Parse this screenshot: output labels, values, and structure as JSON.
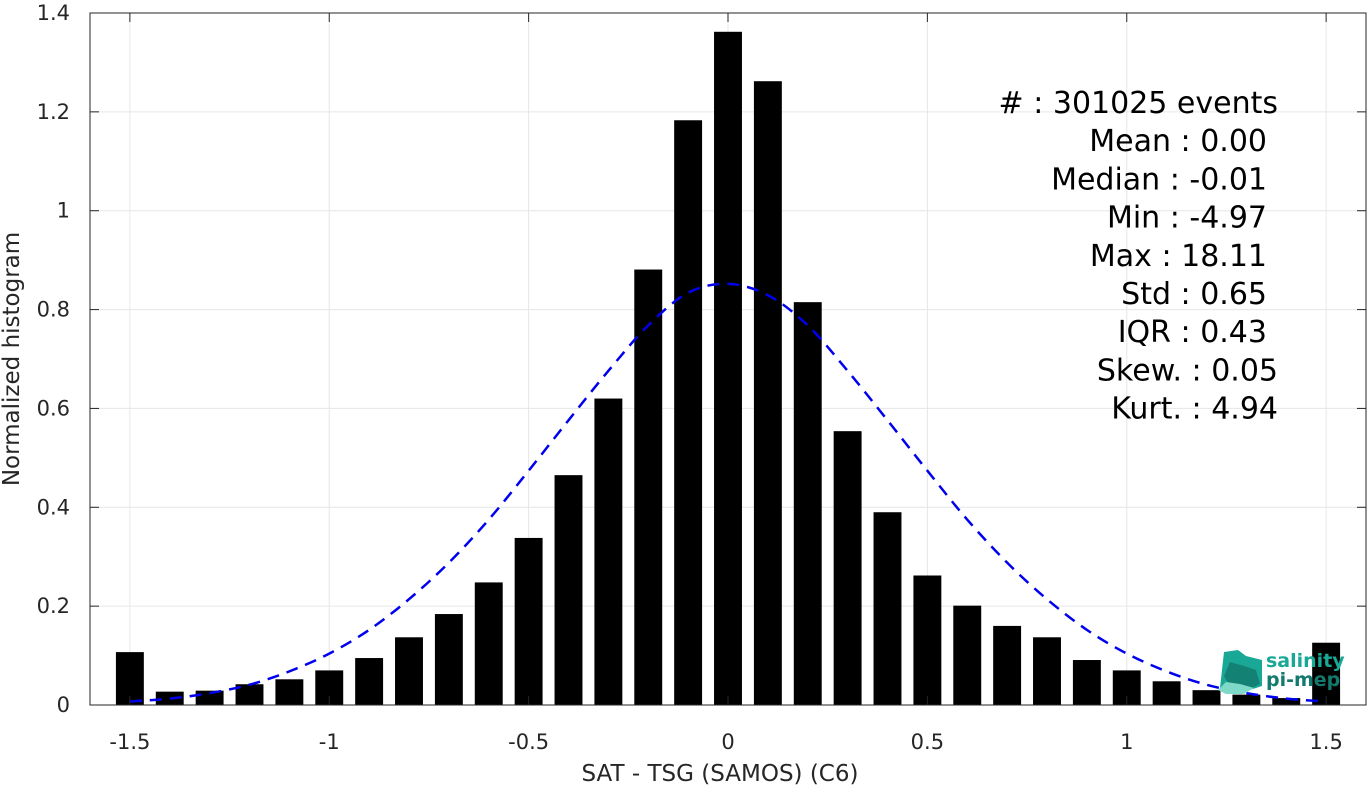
{
  "chart_data": {
    "type": "bar",
    "xlabel": "SAT - TSG (SAMOS) (C6)",
    "ylabel": "Normalized histogram",
    "xlim": [
      -1.6,
      1.6
    ],
    "ylim": [
      0,
      1.4
    ],
    "xticks": [
      -1.5,
      -1,
      -0.5,
      0,
      0.5,
      1,
      1.5
    ],
    "xtick_labels": [
      "-1.5",
      "-1",
      "-0.5",
      "0",
      "0.5",
      "1",
      "1.5"
    ],
    "yticks": [
      0,
      0.2,
      0.4,
      0.6,
      0.8,
      1,
      1.2,
      1.4
    ],
    "ytick_labels": [
      "0",
      "0.2",
      "0.4",
      "0.6",
      "0.8",
      "1",
      "1.2",
      "1.4"
    ],
    "grid": true,
    "bar_color": "#000000",
    "bar_width": 0.07,
    "bars": {
      "x": [
        -1.5,
        -1.4,
        -1.3,
        -1.2,
        -1.1,
        -1.0,
        -0.9,
        -0.8,
        -0.7,
        -0.6,
        -0.5,
        -0.4,
        -0.3,
        -0.2,
        -0.1,
        0.0,
        0.1,
        0.2,
        0.3,
        0.4,
        0.5,
        0.6,
        0.7,
        0.8,
        0.9,
        1.0,
        1.1,
        1.2,
        1.3,
        1.4,
        1.5
      ],
      "values": [
        0.107,
        0.027,
        0.029,
        0.042,
        0.052,
        0.07,
        0.095,
        0.137,
        0.184,
        0.248,
        0.338,
        0.465,
        0.62,
        0.881,
        1.183,
        1.362,
        1.262,
        0.815,
        0.554,
        0.39,
        0.262,
        0.201,
        0.16,
        0.137,
        0.091,
        0.07,
        0.048,
        0.03,
        0.021,
        0.014,
        0.126
      ]
    },
    "fit": {
      "name": "Gaussian fit",
      "color": "#0000ee",
      "style": "dashed",
      "x": [
        -1.5,
        -1.4,
        -1.3,
        -1.2,
        -1.1,
        -1.0,
        -0.9,
        -0.8,
        -0.7,
        -0.6,
        -0.5,
        -0.4,
        -0.3,
        -0.2,
        -0.1,
        0.0,
        0.1,
        0.2,
        0.3,
        0.4,
        0.5,
        0.6,
        0.7,
        0.8,
        0.9,
        1.0,
        1.1,
        1.2,
        1.3,
        1.4,
        1.5
      ],
      "y": [
        0.007,
        0.013,
        0.024,
        0.041,
        0.068,
        0.104,
        0.152,
        0.214,
        0.288,
        0.375,
        0.474,
        0.576,
        0.676,
        0.768,
        0.834,
        0.852,
        0.829,
        0.768,
        0.676,
        0.576,
        0.474,
        0.375,
        0.288,
        0.214,
        0.152,
        0.104,
        0.068,
        0.041,
        0.024,
        0.013,
        0.007
      ]
    },
    "annotations": [
      "#  : 301025 events",
      "Mean : 0.00",
      "Median : -0.01",
      "Min : -4.97",
      "Max : 18.11",
      "Std : 0.65",
      "IQR : 0.43",
      "Skew. : 0.05",
      "Kurt. : 4.94"
    ]
  },
  "logo": {
    "line1": "salinity",
    "line2": "pi-mep",
    "color": "#1aa896"
  }
}
